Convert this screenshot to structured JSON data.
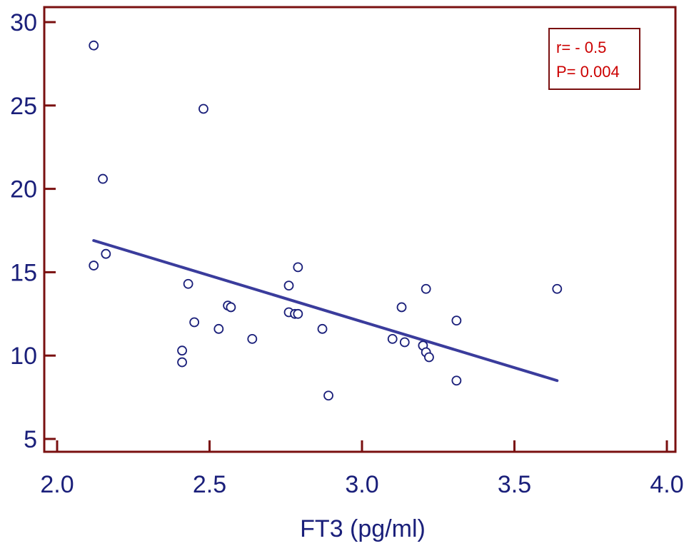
{
  "chart_data": {
    "type": "scatter",
    "xlabel": "FT3 (pg/ml)",
    "ylabel": "",
    "xlim": [
      2.0,
      4.0
    ],
    "ylim": [
      5,
      30
    ],
    "x_ticks": [
      "2.0",
      "2.5",
      "3.0",
      "3.5",
      "4.0"
    ],
    "y_ticks": [
      "5",
      "10",
      "15",
      "20",
      "25",
      "30"
    ],
    "grid": false,
    "colors": {
      "axis": "#7a1010",
      "points": "#1a1f7a",
      "line": "#3a3c9c",
      "stat_text": "#cc0000",
      "stat_box": "#7a1010"
    },
    "points": [
      {
        "x": 2.12,
        "y": 28.6
      },
      {
        "x": 2.15,
        "y": 20.6
      },
      {
        "x": 2.16,
        "y": 16.1
      },
      {
        "x": 2.12,
        "y": 15.4
      },
      {
        "x": 2.48,
        "y": 24.8
      },
      {
        "x": 2.43,
        "y": 14.3
      },
      {
        "x": 2.45,
        "y": 12.0
      },
      {
        "x": 2.41,
        "y": 10.3
      },
      {
        "x": 2.41,
        "y": 9.6
      },
      {
        "x": 2.53,
        "y": 11.6
      },
      {
        "x": 2.56,
        "y": 13.0
      },
      {
        "x": 2.57,
        "y": 12.9
      },
      {
        "x": 2.64,
        "y": 11.0
      },
      {
        "x": 2.76,
        "y": 14.2
      },
      {
        "x": 2.76,
        "y": 12.6
      },
      {
        "x": 2.78,
        "y": 12.5
      },
      {
        "x": 2.79,
        "y": 12.5
      },
      {
        "x": 2.79,
        "y": 15.3
      },
      {
        "x": 2.87,
        "y": 11.6
      },
      {
        "x": 2.89,
        "y": 7.6
      },
      {
        "x": 3.1,
        "y": 11.0
      },
      {
        "x": 3.13,
        "y": 12.9
      },
      {
        "x": 3.14,
        "y": 10.8
      },
      {
        "x": 3.2,
        "y": 10.6
      },
      {
        "x": 3.21,
        "y": 10.2
      },
      {
        "x": 3.22,
        "y": 9.9
      },
      {
        "x": 3.21,
        "y": 14.0
      },
      {
        "x": 3.31,
        "y": 12.1
      },
      {
        "x": 3.31,
        "y": 8.5
      },
      {
        "x": 3.64,
        "y": 14.0
      }
    ],
    "regression_line": {
      "x": [
        2.12,
        3.64
      ],
      "y": [
        16.9,
        8.5
      ]
    },
    "annotation": {
      "r_text": "r= - 0.5",
      "p_text": "P= 0.004"
    }
  }
}
